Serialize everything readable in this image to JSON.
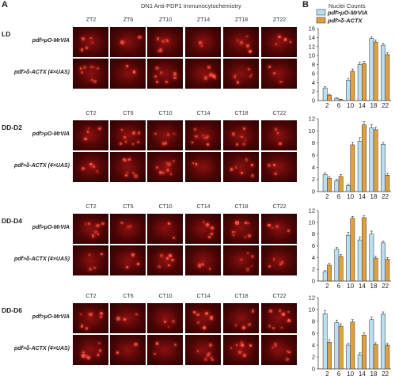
{
  "figure": {
    "panel_a_letter": "A",
    "panel_b_letter": "B",
    "panel_a_title": "DN1 Anti-PDP1 Immunocytochemistry",
    "panel_b_title": "Nuclei Counts",
    "legend": [
      {
        "label": "pdf>μO-MrVIA",
        "color": "#b8dff2"
      },
      {
        "label": "pdf>δ-ACTX",
        "color": "#e0a03c"
      }
    ],
    "genotypes": [
      "pdf>μO-MrVIA",
      "pdf>δ-ACTX (4×UAS)"
    ],
    "sections": [
      {
        "condition": "LD",
        "timepoints": [
          "ZT2",
          "ZT6",
          "ZT10",
          "ZT14",
          "ZT18",
          "ZT22"
        ]
      },
      {
        "condition": "DD-D2",
        "timepoints": [
          "CT2",
          "CT6",
          "CT10",
          "CT14",
          "CT18",
          "CT22"
        ]
      },
      {
        "condition": "DD-D4",
        "timepoints": [
          "CT2",
          "CT6",
          "CT10",
          "CT14",
          "CT18",
          "CT22"
        ]
      },
      {
        "condition": "DD-D6",
        "timepoints": [
          "CT2",
          "CT6",
          "CT10",
          "CT14",
          "CT18",
          "CT22"
        ]
      }
    ]
  },
  "chart_data": [
    {
      "type": "bar",
      "condition": "LD",
      "categories": [
        "2",
        "6",
        "10",
        "14",
        "18",
        "22"
      ],
      "ylim": [
        0,
        16
      ],
      "yticks": [
        0,
        2,
        4,
        6,
        8,
        10,
        12,
        14,
        16
      ],
      "series": [
        {
          "name": "pdf>μO-MrVIA",
          "values": [
            2.8,
            0.5,
            4.5,
            8.0,
            13.8,
            12.3
          ],
          "errors": [
            0.3,
            0.1,
            0.4,
            0.5,
            0.3,
            0.4
          ]
        },
        {
          "name": "pdf>δ-ACTX",
          "values": [
            1.2,
            0.2,
            6.5,
            8.2,
            13.0,
            10.2
          ],
          "errors": [
            0.2,
            0.1,
            0.5,
            0.5,
            0.4,
            0.4
          ]
        }
      ]
    },
    {
      "type": "bar",
      "condition": "DD-D2",
      "categories": [
        "2",
        "6",
        "10",
        "14",
        "18",
        "22"
      ],
      "ylim": [
        0,
        12
      ],
      "yticks": [
        0,
        2,
        4,
        6,
        8,
        10,
        12
      ],
      "series": [
        {
          "name": "pdf>μO-MrVIA",
          "values": [
            2.8,
            1.8,
            1.0,
            8.3,
            10.5,
            7.8
          ],
          "errors": [
            0.3,
            0.2,
            0.2,
            0.6,
            0.5,
            0.3
          ]
        },
        {
          "name": "pdf>δ-ACTX",
          "values": [
            2.2,
            2.5,
            7.7,
            11.0,
            10.2,
            2.7
          ],
          "errors": [
            0.3,
            0.3,
            0.4,
            0.5,
            0.4,
            0.3
          ]
        }
      ]
    },
    {
      "type": "bar",
      "condition": "DD-D4",
      "categories": [
        "2",
        "6",
        "10",
        "14",
        "18",
        "22"
      ],
      "ylim": [
        0,
        12
      ],
      "yticks": [
        0,
        2,
        4,
        6,
        8,
        10,
        12
      ],
      "series": [
        {
          "name": "pdf>μO-MrVIA",
          "values": [
            1.6,
            5.4,
            7.8,
            7.0,
            8.0,
            6.5
          ],
          "errors": [
            0.2,
            0.3,
            0.5,
            0.5,
            0.5,
            0.3
          ]
        },
        {
          "name": "pdf>δ-ACTX",
          "values": [
            2.7,
            4.2,
            10.7,
            10.8,
            3.9,
            3.7
          ],
          "errors": [
            0.3,
            0.3,
            0.3,
            0.3,
            0.3,
            0.3
          ]
        }
      ]
    },
    {
      "type": "bar",
      "condition": "DD-D6",
      "categories": [
        "2",
        "6",
        "10",
        "14",
        "18",
        "22"
      ],
      "ylim": [
        0,
        12
      ],
      "yticks": [
        0,
        2,
        4,
        6,
        8,
        10,
        12
      ],
      "series": [
        {
          "name": "pdf>μO-MrVIA",
          "values": [
            9.3,
            7.8,
            4.0,
            2.4,
            8.3,
            9.2
          ],
          "errors": [
            0.5,
            0.4,
            0.3,
            0.3,
            0.4,
            0.4
          ]
        },
        {
          "name": "pdf>δ-ACTX",
          "values": [
            4.5,
            7.2,
            7.9,
            5.7,
            4.1,
            4.0
          ],
          "errors": [
            0.4,
            0.4,
            0.4,
            0.4,
            0.3,
            0.3
          ]
        }
      ]
    }
  ]
}
